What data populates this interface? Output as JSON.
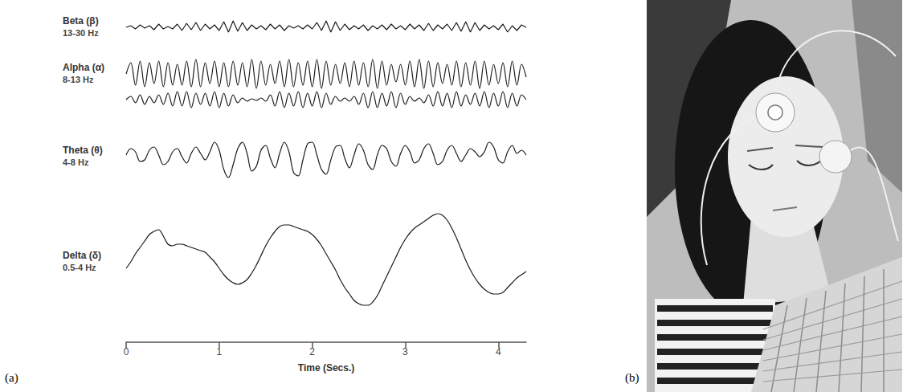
{
  "chart_data": {
    "type": "line",
    "panel": "(a)",
    "x_label": "Time (Secs.)",
    "x": [
      0,
      0.05,
      0.1,
      0.15,
      0.2,
      0.25,
      0.3,
      0.35,
      0.4,
      0.45,
      0.5,
      0.55,
      0.6,
      0.65,
      0.7,
      0.75,
      0.8,
      0.85,
      0.9,
      0.95,
      1,
      1.05,
      1.1,
      1.15,
      1.2,
      1.25,
      1.3,
      1.35,
      1.4,
      1.45,
      1.5,
      1.55,
      1.6,
      1.65,
      1.7,
      1.75,
      1.8,
      1.85,
      1.9,
      1.95,
      2,
      2.05,
      2.1,
      2.15,
      2.2,
      2.25,
      2.3,
      2.35,
      2.4,
      2.45,
      2.5,
      2.55,
      2.6,
      2.65,
      2.7,
      2.75,
      2.8,
      2.85,
      2.9,
      2.95,
      3,
      3.05,
      3.1,
      3.15,
      3.2,
      3.25,
      3.3,
      3.35,
      3.4,
      3.45,
      3.5,
      3.55,
      3.6,
      3.65,
      3.7,
      3.75,
      3.8,
      3.85,
      3.9,
      3.95,
      4,
      4.05,
      4.1,
      4.15,
      4.2,
      4.25,
      4.3
    ],
    "xlim": [
      0,
      4.3
    ],
    "xticks": [
      0,
      1,
      2,
      3,
      4
    ],
    "tick_labels": "x",
    "grid": false,
    "series": [
      {
        "name": "Beta (β)",
        "band": "13-30 Hz",
        "color": "#1a1a1a",
        "line_style": "jagged",
        "ylim": [
          -0.6,
          0.6
        ],
        "traces": [
          [
            0,
            0.1,
            -0.1,
            0.15,
            -0.05,
            0.1,
            -0.15,
            0.2,
            -0.1,
            0.05,
            -0.1,
            0.2,
            -0.2,
            0.25,
            -0.15,
            0.3,
            -0.2,
            0.2,
            -0.1,
            0.15,
            -0.2,
            0.35,
            -0.3,
            0.4,
            -0.25,
            0.3,
            -0.2,
            0.15,
            -0.1,
            0.1,
            -0.15,
            0.2,
            -0.1,
            0.15,
            -0.2,
            0.1,
            -0.05,
            0.1,
            -0.1,
            0.15,
            -0.1,
            0.3,
            -0.2,
            0.4,
            -0.3,
            0.35,
            -0.2,
            0.2,
            -0.15,
            0.1,
            -0.1,
            0.15,
            -0.2,
            0.1,
            -0.1,
            0.15,
            -0.15,
            0.2,
            -0.1,
            0.1,
            -0.15,
            0.2,
            -0.1,
            0.15,
            -0.2,
            0.25,
            -0.2,
            0.15,
            -0.1,
            0.2,
            -0.2,
            0.3,
            -0.25,
            0.35,
            -0.3,
            0.3,
            -0.2,
            0.15,
            -0.1,
            0.1,
            -0.15,
            0.2,
            -0.3,
            0.1,
            -0.2,
            0.15,
            0
          ]
        ]
      },
      {
        "name": "Alpha (α)",
        "band": "8-13 Hz",
        "color": "#1a1a1a",
        "line_style": "smooth",
        "ylim": [
          -1,
          1
        ],
        "traces": [
          [
            0,
            0.7,
            -0.7,
            0.8,
            -0.8,
            0.7,
            -0.6,
            0.8,
            -0.8,
            0.7,
            -0.7,
            0.6,
            -0.7,
            0.8,
            -0.8,
            0.9,
            -0.8,
            0.7,
            -0.6,
            0.8,
            -0.8,
            0.7,
            -0.8,
            0.8,
            -0.7,
            0.7,
            -0.8,
            0.9,
            -0.9,
            0.8,
            -0.7,
            0.6,
            -0.6,
            0.8,
            -0.8,
            0.9,
            -0.8,
            0.7,
            -0.7,
            0.8,
            -0.8,
            0.9,
            -0.9,
            0.8,
            -0.7,
            0.6,
            -0.6,
            0.7,
            -0.8,
            0.8,
            -0.7,
            0.7,
            -0.8,
            0.9,
            -0.9,
            0.8,
            -0.7,
            0.6,
            -0.5,
            0.6,
            -0.7,
            0.8,
            -0.8,
            0.9,
            -0.9,
            0.8,
            -0.8,
            0.7,
            -0.6,
            0.6,
            -0.7,
            0.8,
            -0.8,
            0.7,
            -0.7,
            0.8,
            -0.9,
            0.8,
            -0.7,
            0.6,
            -0.6,
            0.7,
            -0.8,
            0.8,
            -0.7,
            0.6,
            -0.2
          ],
          [
            0,
            0.2,
            -0.2,
            0.3,
            -0.3,
            0.2,
            -0.2,
            0.3,
            -0.3,
            0.4,
            -0.4,
            0.5,
            -0.4,
            0.5,
            -0.5,
            0.4,
            -0.3,
            0.4,
            -0.4,
            0.5,
            -0.5,
            0.4,
            -0.4,
            0.3,
            -0.2,
            0.1,
            -0.1,
            0.05,
            -0.05,
            0.1,
            -0.1,
            0.3,
            -0.4,
            0.5,
            -0.5,
            0.4,
            -0.4,
            0.5,
            -0.5,
            0.4,
            -0.4,
            0.5,
            -0.5,
            0.4,
            -0.3,
            0.2,
            -0.1,
            0.1,
            -0.1,
            0.2,
            -0.3,
            0.4,
            -0.5,
            0.5,
            -0.5,
            0.4,
            -0.4,
            0.5,
            -0.5,
            0.4,
            -0.3,
            0.2,
            -0.1,
            0.1,
            -0.2,
            0.3,
            -0.4,
            0.5,
            -0.4,
            0.4,
            -0.5,
            0.5,
            -0.4,
            0.3,
            -0.3,
            0.4,
            -0.4,
            0.5,
            -0.5,
            0.4,
            -0.4,
            0.5,
            -0.5,
            0.4,
            -0.4,
            0.3,
            0
          ]
        ]
      },
      {
        "name": "Theta (θ)",
        "band": "4-8 Hz",
        "color": "#1a1a1a",
        "line_style": "smooth",
        "ylim": [
          -1.5,
          1.5
        ],
        "traces": [
          [
            0.1,
            0.5,
            0.3,
            -0.3,
            -0.2,
            0.4,
            0.6,
            0.1,
            -0.5,
            -0.3,
            0.3,
            0.5,
            0,
            -0.4,
            0.2,
            0.6,
            0.2,
            -0.2,
            0.3,
            0.9,
            0.4,
            -0.8,
            -1.3,
            -0.5,
            0.5,
            0.9,
            0.2,
            -0.9,
            -0.6,
            0.4,
            0.7,
            -0.1,
            -0.7,
            0.2,
            0.9,
            0.3,
            -1.0,
            -1.2,
            -0.2,
            0.8,
            0.9,
            0.1,
            -0.8,
            -1.1,
            -0.2,
            0.6,
            0.7,
            -0.1,
            -0.7,
            0.1,
            0.8,
            0.4,
            -0.5,
            -0.8,
            0.1,
            0.7,
            0.5,
            -0.3,
            -0.6,
            0.2,
            0.7,
            0.3,
            -0.4,
            -0.2,
            0.5,
            0.8,
            0.2,
            -0.5,
            -0.3,
            0.4,
            0.7,
            0.2,
            -0.3,
            0.1,
            0.5,
            0.3,
            0,
            0.3,
            0.9,
            0.6,
            -0.2,
            -0.4,
            0.3,
            0.7,
            0.2,
            0.4,
            0.1
          ]
        ]
      },
      {
        "name": "Delta (δ)",
        "band": "0.5-4 Hz",
        "color": "#1a1a1a",
        "line_style": "smooth",
        "ylim": [
          -3.2,
          3.2
        ],
        "traces": [
          [
            -0.4,
            0,
            0.5,
            0.9,
            1.3,
            1.7,
            1.9,
            2.0,
            1.6,
            1.1,
            1.0,
            1.1,
            1.1,
            1.0,
            0.9,
            0.8,
            0.7,
            0.6,
            0.3,
            0,
            -0.4,
            -0.8,
            -1.1,
            -1.3,
            -1.4,
            -1.3,
            -1.1,
            -0.7,
            -0.2,
            0.4,
            1.0,
            1.5,
            1.9,
            2.2,
            2.3,
            2.3,
            2.2,
            2.1,
            2.0,
            1.9,
            1.7,
            1.4,
            1.0,
            0.5,
            0,
            -0.5,
            -1.1,
            -1.6,
            -2.0,
            -2.4,
            -2.6,
            -2.7,
            -2.7,
            -2.5,
            -2.1,
            -1.5,
            -0.9,
            -0.3,
            0.3,
            0.9,
            1.4,
            1.8,
            2.1,
            2.3,
            2.5,
            2.7,
            2.9,
            3.0,
            2.9,
            2.6,
            2.1,
            1.5,
            0.8,
            0.1,
            -0.5,
            -1.0,
            -1.4,
            -1.7,
            -1.9,
            -2.0,
            -2.0,
            -1.9,
            -1.6,
            -1.3,
            -1.0,
            -0.8,
            -0.6
          ]
        ]
      }
    ]
  },
  "photo": {
    "panel": "(b)"
  }
}
